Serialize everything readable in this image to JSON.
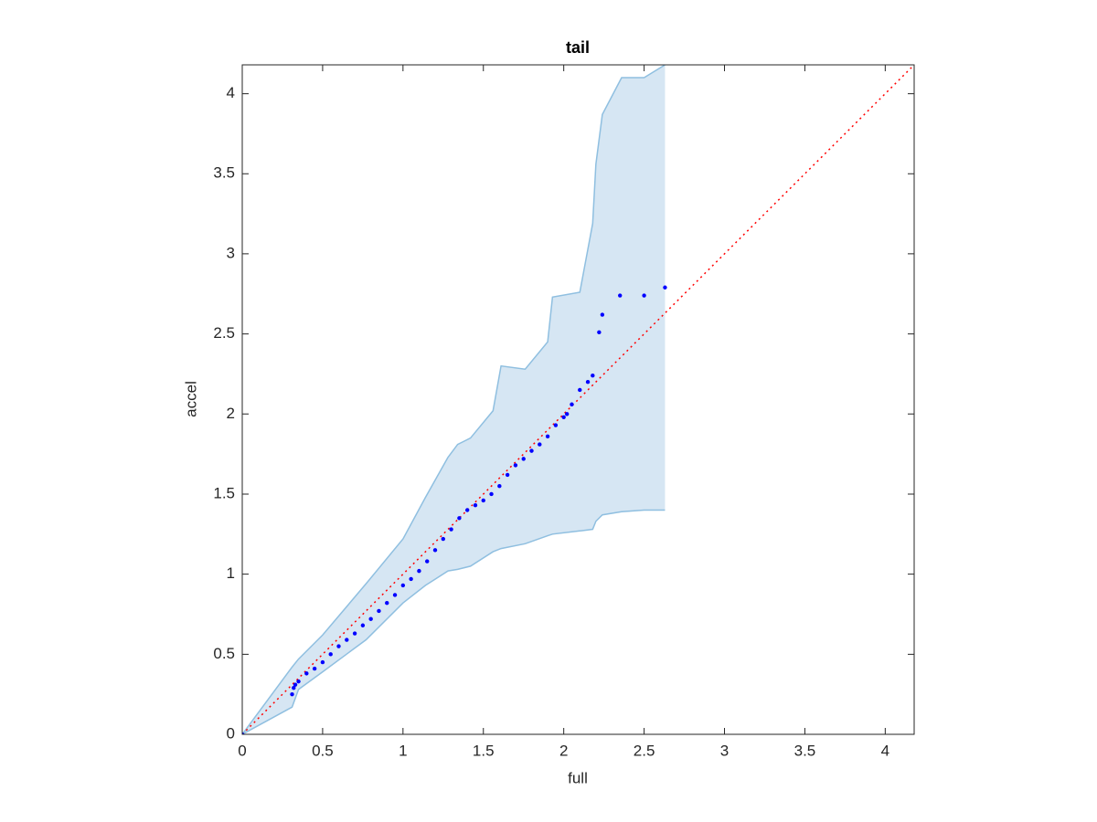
{
  "chart_data": {
    "type": "scatter",
    "title": "tail",
    "xlabel": "full",
    "ylabel": "accel",
    "xlim": [
      0,
      4.18
    ],
    "ylim": [
      0,
      4.18
    ],
    "xticks": [
      0,
      0.5,
      1,
      1.5,
      2,
      2.5,
      3,
      3.5,
      4
    ],
    "yticks": [
      0,
      0.5,
      1,
      1.5,
      2,
      2.5,
      3,
      3.5,
      4
    ],
    "box": true,
    "band": {
      "color": "#d6e6f3",
      "edge_color": "#8fbfe0",
      "x": [
        0,
        0.31,
        0.35,
        0.5,
        0.77,
        1.0,
        1.14,
        1.28,
        1.34,
        1.42,
        1.56,
        1.61,
        1.76,
        1.9,
        1.93,
        2.1,
        2.18,
        2.2,
        2.24,
        2.36,
        2.5,
        2.63
      ],
      "upper": [
        0,
        0.42,
        0.47,
        0.62,
        0.94,
        1.22,
        1.48,
        1.73,
        1.81,
        1.85,
        2.02,
        2.3,
        2.28,
        2.45,
        2.73,
        2.76,
        3.19,
        3.56,
        3.87,
        4.1,
        4.1,
        4.18
      ],
      "lower": [
        0,
        0.17,
        0.28,
        0.39,
        0.59,
        0.82,
        0.93,
        1.02,
        1.03,
        1.05,
        1.14,
        1.16,
        1.19,
        1.24,
        1.25,
        1.27,
        1.28,
        1.33,
        1.37,
        1.39,
        1.4,
        1.4
      ]
    },
    "reference_line": {
      "color": "#ff0000",
      "style": "dotted",
      "x": [
        0,
        4.18
      ],
      "values": [
        0,
        4.18
      ]
    },
    "series": [
      {
        "color": "#0000ff",
        "x": [
          0,
          0.31,
          0.32,
          0.33,
          0.35,
          0.4,
          0.45,
          0.5,
          0.55,
          0.6,
          0.65,
          0.7,
          0.75,
          0.8,
          0.85,
          0.9,
          0.95,
          1.0,
          1.05,
          1.1,
          1.15,
          1.2,
          1.25,
          1.3,
          1.35,
          1.4,
          1.45,
          1.5,
          1.55,
          1.6,
          1.65,
          1.7,
          1.75,
          1.8,
          1.85,
          1.9,
          1.95,
          2.0,
          2.02,
          2.05,
          2.1,
          2.15,
          2.18,
          2.22,
          2.24,
          2.35,
          2.5,
          2.63
        ],
        "values": [
          0,
          0.25,
          0.29,
          0.31,
          0.33,
          0.38,
          0.41,
          0.45,
          0.5,
          0.55,
          0.59,
          0.63,
          0.68,
          0.72,
          0.77,
          0.82,
          0.87,
          0.93,
          0.97,
          1.02,
          1.08,
          1.15,
          1.22,
          1.28,
          1.35,
          1.4,
          1.43,
          1.46,
          1.5,
          1.55,
          1.62,
          1.68,
          1.72,
          1.77,
          1.81,
          1.86,
          1.93,
          1.98,
          2.0,
          2.06,
          2.15,
          2.2,
          2.24,
          2.51,
          2.62,
          2.74,
          2.74,
          2.79
        ]
      }
    ]
  }
}
